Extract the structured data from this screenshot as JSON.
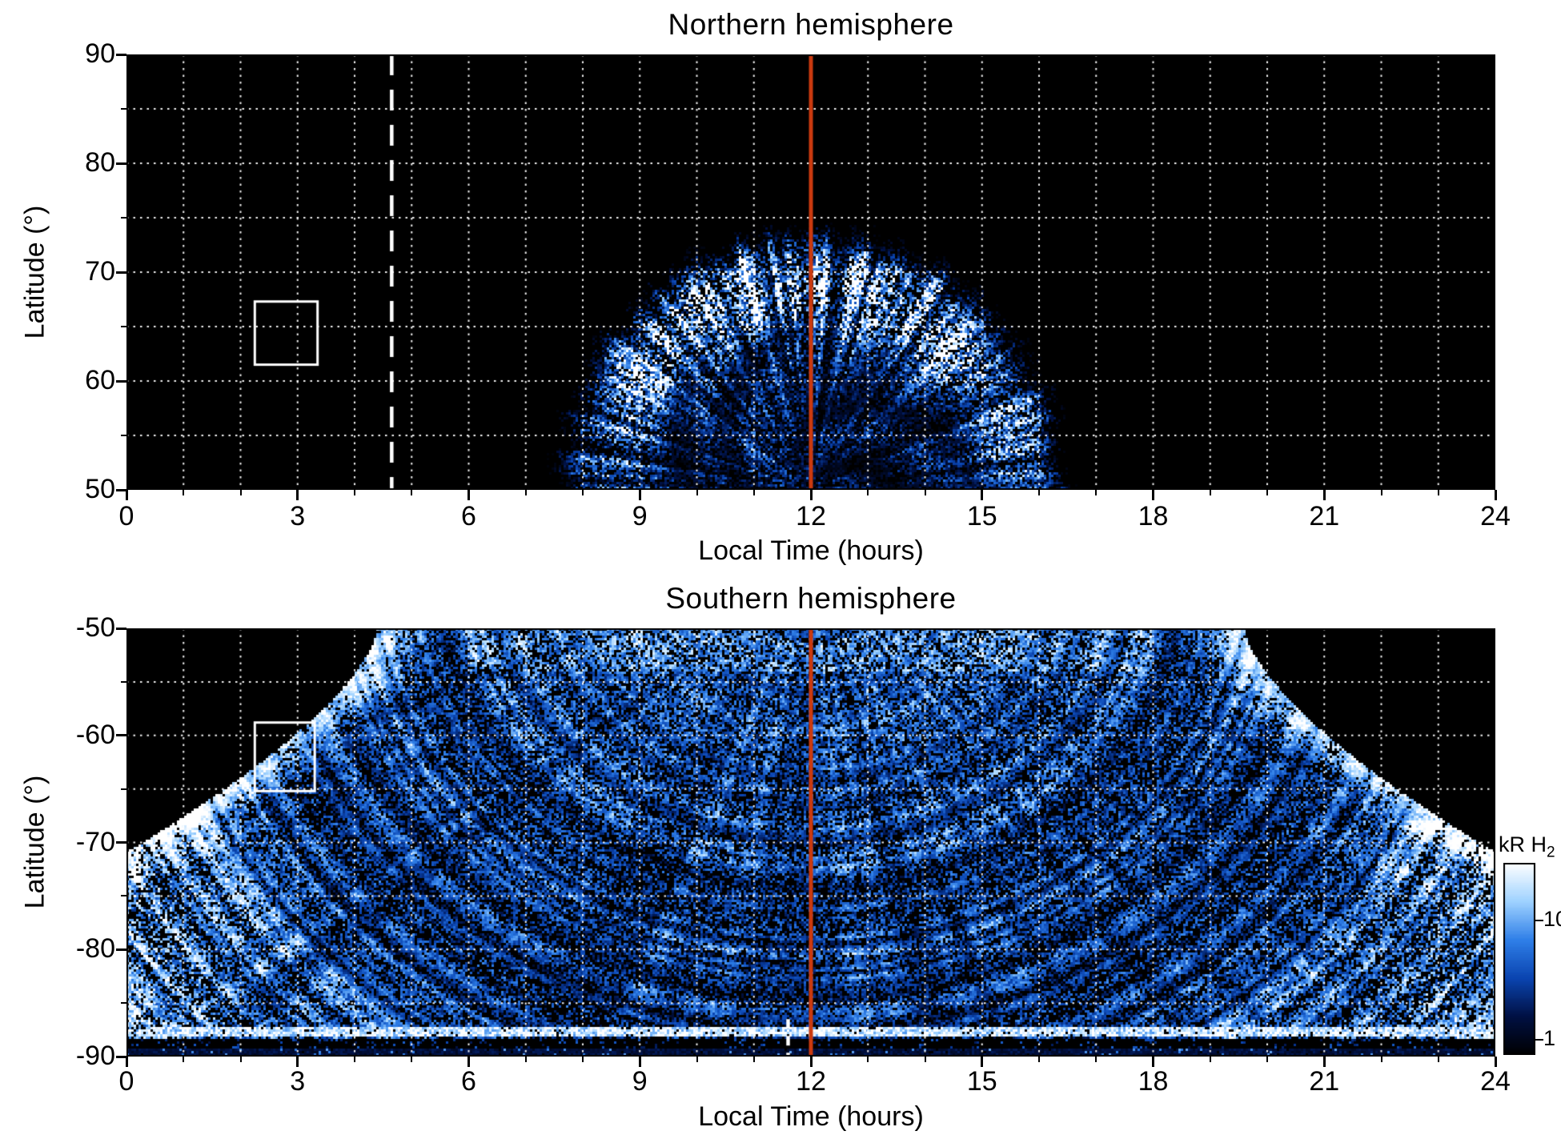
{
  "chart_data": [
    {
      "id": "northern",
      "type": "heatmap",
      "title": "Northern hemisphere",
      "xlabel": "Local Time (hours)",
      "ylabel": "Latitude (°)",
      "xlim": [
        0,
        24
      ],
      "ylim": [
        50,
        90
      ],
      "x_ticks": [
        0,
        3,
        6,
        9,
        12,
        15,
        18,
        21,
        24
      ],
      "y_ticks": [
        90,
        80,
        70,
        60,
        50
      ],
      "grid": {
        "style": "dotted",
        "color": "#ffffff",
        "x_step_hours": 1,
        "y_step_deg": 5
      },
      "background": "#000000",
      "reference_lines": [
        {
          "kind": "solid",
          "color": "#cb3a0f",
          "x": 12,
          "dash": null
        },
        {
          "kind": "dashed",
          "color": "#ffffff",
          "x": 4.65,
          "dash": [
            26,
            18
          ]
        }
      ],
      "box_annotation": {
        "lt_min": 2.25,
        "lt_max": 3.35,
        "lat_min": 61.5,
        "lat_max": 67.3
      },
      "emission": {
        "description": "Speckled blue-white H2 auroral emission dome centred on local noon, black elsewhere",
        "center_lt": 12,
        "lt_extent": [
          7.6,
          16.6
        ],
        "lat_extent": [
          50,
          73
        ],
        "half_width_hours": 4.4,
        "top_latitude": 73.3,
        "bright_ring_radius_frac": 0.8,
        "intensity_range_kR": [
          1,
          10
        ]
      }
    },
    {
      "id": "southern",
      "type": "heatmap",
      "title": "Southern hemisphere",
      "xlabel": "Local Time (hours)",
      "ylabel": "Latitude (°)",
      "xlim": [
        0,
        24
      ],
      "ylim": [
        -90,
        -50
      ],
      "x_ticks": [
        0,
        3,
        6,
        9,
        12,
        15,
        18,
        21,
        24
      ],
      "y_ticks": [
        -50,
        -60,
        -70,
        -80,
        -90
      ],
      "grid": {
        "style": "dotted",
        "color": "#ffffff",
        "x_step_hours": 1,
        "y_step_deg": 5
      },
      "background": "#000000",
      "reference_lines": [
        {
          "kind": "solid",
          "color": "#cb3a0f",
          "x": 12,
          "dash": null
        },
        {
          "kind": "dashed",
          "color": "#ffffff",
          "x": 11.6,
          "dash": [
            12,
            9
          ],
          "lat_from": -86.5,
          "lat_to": -90
        }
      ],
      "box_annotation": {
        "lt_min": 2.25,
        "lt_max": 3.3,
        "lat_min": -65.2,
        "lat_max": -58.8
      },
      "emission": {
        "description": "Dense speckled H2 emission fan filling the polar cap with curved arc striations; black gaps in the dawn and dusk corners above -74 deg and a dark band near -88.5 deg",
        "boundary_half_width_at_minus50_hours": 7.6,
        "full_coverage_below_latitude": -74,
        "bright_fan_edges_lt": [
          5.4,
          18.6
        ],
        "dark_band_lat": [
          -88.2,
          -89.1
        ],
        "intensity_range_kR": [
          1,
          10
        ]
      }
    }
  ],
  "colorbar": {
    "label_main": "kR H",
    "label_sub": "2",
    "scale": "log",
    "ticks": [
      {
        "label": "10",
        "frac_from_top": 0.3
      },
      {
        "label": "1",
        "frac_from_top": 0.92
      }
    ],
    "gradient_top_to_bottom": [
      "#ffffff",
      "#9fd2ff",
      "#2f7fe8",
      "#0a44b0",
      "#001042",
      "#000000"
    ]
  }
}
